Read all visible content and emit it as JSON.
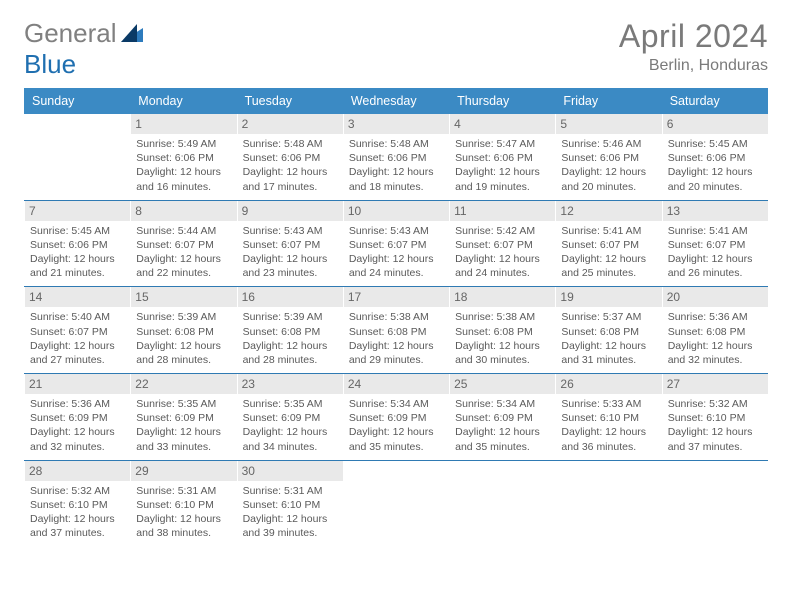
{
  "logo": {
    "text_gray": "General",
    "text_blue": "Blue",
    "tri_dark": "#0a3a66",
    "tri_light": "#2d7bbd"
  },
  "header": {
    "title": "April 2024",
    "location": "Berlin, Honduras"
  },
  "colors": {
    "header_bg": "#3b8ac4",
    "header_text": "#ffffff",
    "row_divider": "#2f7ab3",
    "daybar_bg": "#e9e9e9",
    "text_gray": "#5a5a5a",
    "title_gray": "#7a7a7a",
    "page_bg": "#ffffff"
  },
  "typography": {
    "title_fontsize": 32,
    "location_fontsize": 16,
    "weekday_fontsize": 12.5,
    "body_fontsize": 10.5,
    "daynum_fontsize": 12
  },
  "layout": {
    "columns": 7,
    "rows": 5
  },
  "calendar": {
    "weekdays": [
      "Sunday",
      "Monday",
      "Tuesday",
      "Wednesday",
      "Thursday",
      "Friday",
      "Saturday"
    ],
    "month_start_weekday": 1,
    "days": [
      {
        "n": 1,
        "sunrise": "5:49 AM",
        "sunset": "6:06 PM",
        "daylight": "12 hours and 16 minutes."
      },
      {
        "n": 2,
        "sunrise": "5:48 AM",
        "sunset": "6:06 PM",
        "daylight": "12 hours and 17 minutes."
      },
      {
        "n": 3,
        "sunrise": "5:48 AM",
        "sunset": "6:06 PM",
        "daylight": "12 hours and 18 minutes."
      },
      {
        "n": 4,
        "sunrise": "5:47 AM",
        "sunset": "6:06 PM",
        "daylight": "12 hours and 19 minutes."
      },
      {
        "n": 5,
        "sunrise": "5:46 AM",
        "sunset": "6:06 PM",
        "daylight": "12 hours and 20 minutes."
      },
      {
        "n": 6,
        "sunrise": "5:45 AM",
        "sunset": "6:06 PM",
        "daylight": "12 hours and 20 minutes."
      },
      {
        "n": 7,
        "sunrise": "5:45 AM",
        "sunset": "6:06 PM",
        "daylight": "12 hours and 21 minutes."
      },
      {
        "n": 8,
        "sunrise": "5:44 AM",
        "sunset": "6:07 PM",
        "daylight": "12 hours and 22 minutes."
      },
      {
        "n": 9,
        "sunrise": "5:43 AM",
        "sunset": "6:07 PM",
        "daylight": "12 hours and 23 minutes."
      },
      {
        "n": 10,
        "sunrise": "5:43 AM",
        "sunset": "6:07 PM",
        "daylight": "12 hours and 24 minutes."
      },
      {
        "n": 11,
        "sunrise": "5:42 AM",
        "sunset": "6:07 PM",
        "daylight": "12 hours and 24 minutes."
      },
      {
        "n": 12,
        "sunrise": "5:41 AM",
        "sunset": "6:07 PM",
        "daylight": "12 hours and 25 minutes."
      },
      {
        "n": 13,
        "sunrise": "5:41 AM",
        "sunset": "6:07 PM",
        "daylight": "12 hours and 26 minutes."
      },
      {
        "n": 14,
        "sunrise": "5:40 AM",
        "sunset": "6:07 PM",
        "daylight": "12 hours and 27 minutes."
      },
      {
        "n": 15,
        "sunrise": "5:39 AM",
        "sunset": "6:08 PM",
        "daylight": "12 hours and 28 minutes."
      },
      {
        "n": 16,
        "sunrise": "5:39 AM",
        "sunset": "6:08 PM",
        "daylight": "12 hours and 28 minutes."
      },
      {
        "n": 17,
        "sunrise": "5:38 AM",
        "sunset": "6:08 PM",
        "daylight": "12 hours and 29 minutes."
      },
      {
        "n": 18,
        "sunrise": "5:38 AM",
        "sunset": "6:08 PM",
        "daylight": "12 hours and 30 minutes."
      },
      {
        "n": 19,
        "sunrise": "5:37 AM",
        "sunset": "6:08 PM",
        "daylight": "12 hours and 31 minutes."
      },
      {
        "n": 20,
        "sunrise": "5:36 AM",
        "sunset": "6:08 PM",
        "daylight": "12 hours and 32 minutes."
      },
      {
        "n": 21,
        "sunrise": "5:36 AM",
        "sunset": "6:09 PM",
        "daylight": "12 hours and 32 minutes."
      },
      {
        "n": 22,
        "sunrise": "5:35 AM",
        "sunset": "6:09 PM",
        "daylight": "12 hours and 33 minutes."
      },
      {
        "n": 23,
        "sunrise": "5:35 AM",
        "sunset": "6:09 PM",
        "daylight": "12 hours and 34 minutes."
      },
      {
        "n": 24,
        "sunrise": "5:34 AM",
        "sunset": "6:09 PM",
        "daylight": "12 hours and 35 minutes."
      },
      {
        "n": 25,
        "sunrise": "5:34 AM",
        "sunset": "6:09 PM",
        "daylight": "12 hours and 35 minutes."
      },
      {
        "n": 26,
        "sunrise": "5:33 AM",
        "sunset": "6:10 PM",
        "daylight": "12 hours and 36 minutes."
      },
      {
        "n": 27,
        "sunrise": "5:32 AM",
        "sunset": "6:10 PM",
        "daylight": "12 hours and 37 minutes."
      },
      {
        "n": 28,
        "sunrise": "5:32 AM",
        "sunset": "6:10 PM",
        "daylight": "12 hours and 37 minutes."
      },
      {
        "n": 29,
        "sunrise": "5:31 AM",
        "sunset": "6:10 PM",
        "daylight": "12 hours and 38 minutes."
      },
      {
        "n": 30,
        "sunrise": "5:31 AM",
        "sunset": "6:10 PM",
        "daylight": "12 hours and 39 minutes."
      }
    ],
    "labels": {
      "sunrise": "Sunrise:",
      "sunset": "Sunset:",
      "daylight": "Daylight:"
    }
  }
}
